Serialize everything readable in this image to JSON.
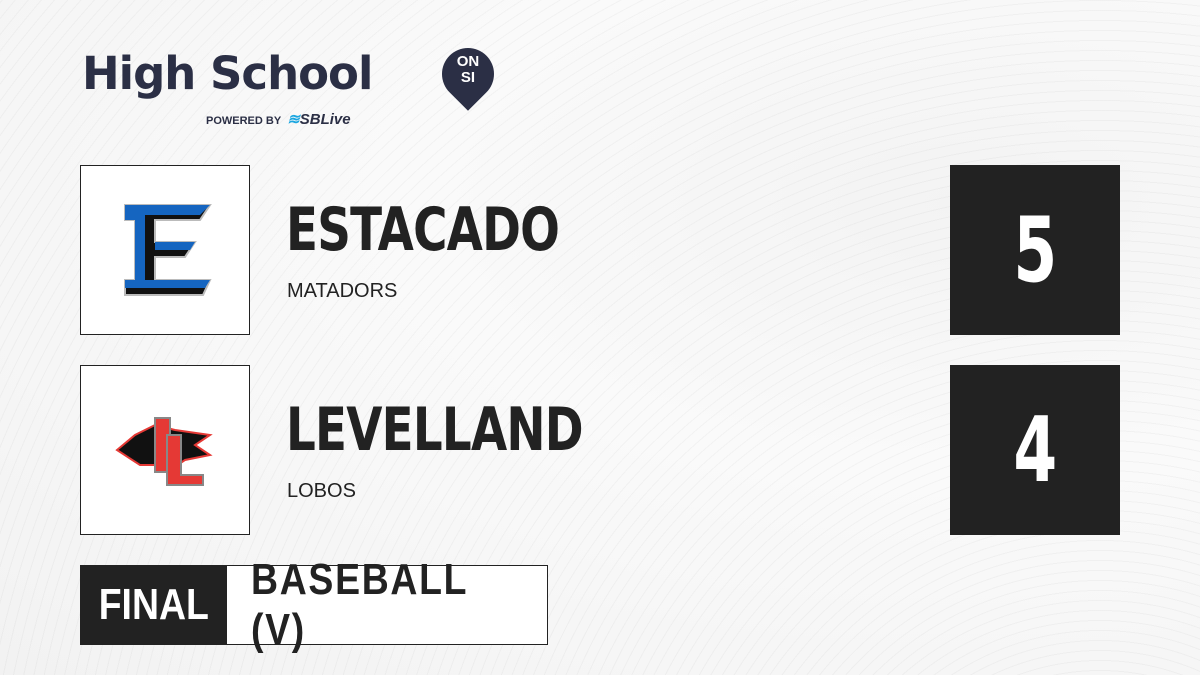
{
  "brand": {
    "title": "High School",
    "badge_top": "ON",
    "badge_bottom": "SI",
    "powered_by": "POWERED BY",
    "partner": "SBLive"
  },
  "teams": [
    {
      "name": "ESTACADO",
      "mascot": "MATADORS",
      "score": "5",
      "logo": "estacado-e-logo",
      "color": "#1565c0"
    },
    {
      "name": "LEVELLAND",
      "mascot": "LOBOS",
      "score": "4",
      "logo": "levelland-lobo-logo",
      "color": "#e53935"
    }
  ],
  "status": {
    "label": "FINAL",
    "sport": "BASEBALL (V)"
  }
}
